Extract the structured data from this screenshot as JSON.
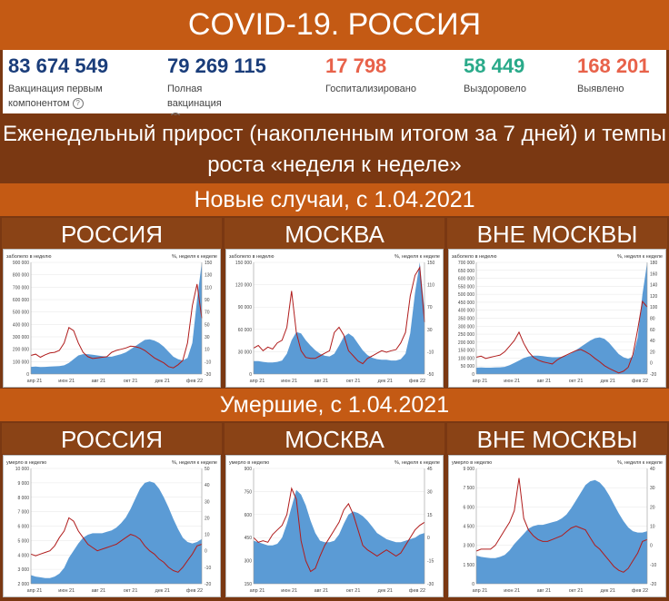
{
  "title": "COVID-19. РОССИЯ",
  "stats": [
    {
      "value": "83 674 549",
      "label": "Вакцинация первым компонентом",
      "color": "#1a3d7a",
      "help": true
    },
    {
      "value": "79 269 115",
      "label": "Полная вакцинация",
      "color": "#1a3d7a",
      "help": true
    },
    {
      "value": "17 798",
      "label": "Госпитализировано",
      "color": "#e8624a",
      "help": false
    },
    {
      "value": "58 449",
      "label": "Выздоровело",
      "color": "#2aaa8a",
      "help": false
    },
    {
      "value": "168 201",
      "label": "Выявлено",
      "color": "#e8624a",
      "help": false
    }
  ],
  "weekly_heading": "Еженедельный прирост (накопленным итогом за 7 дней) и темпы роста «неделя к неделе»",
  "cases_heading": "Новые случаи, с 1.04.2021",
  "deaths_heading": "Умершие, с 1.04.2021",
  "regions": [
    "РОССИЯ",
    "МОСКВА",
    "ВНЕ МОСКВЫ"
  ],
  "colors": {
    "area": "#5b9bd5",
    "line": "#b01c1c",
    "accent": "#c45a14",
    "dark": "#7a3812"
  },
  "chart_data": [
    {
      "type": "area",
      "region": "РОССИЯ",
      "left_label": "заболело в неделю",
      "right_label": "%, неделя к неделе",
      "x_ticks": [
        "апр 21",
        "июн 21",
        "авг 21",
        "окт 21",
        "дек 21",
        "фев 22"
      ],
      "ylim": [
        0,
        900000
      ],
      "y_ticks": [
        "0",
        "100 000",
        "200 000",
        "300 000",
        "400 000",
        "500 000",
        "600 000",
        "700 000",
        "800 000",
        "900 000"
      ],
      "y2lim": [
        -30,
        150
      ],
      "y2_ticks": [
        "-30",
        "-10",
        "10",
        "30",
        "50",
        "70",
        "90",
        "110",
        "130",
        "150"
      ],
      "series": [
        {
          "name": "заболело в неделю",
          "axis": "left",
          "values": [
            58000,
            60000,
            57000,
            58000,
            60000,
            62000,
            64000,
            70000,
            90000,
            120000,
            150000,
            160000,
            160000,
            155000,
            150000,
            145000,
            140000,
            140000,
            150000,
            160000,
            175000,
            200000,
            225000,
            250000,
            275000,
            280000,
            270000,
            250000,
            220000,
            180000,
            140000,
            120000,
            110000,
            130000,
            250000,
            600000,
            900000
          ]
        },
        {
          "name": "%, неделя к неделе",
          "axis": "right",
          "values": [
            0,
            2,
            -3,
            1,
            4,
            5,
            8,
            20,
            45,
            40,
            20,
            5,
            -2,
            -5,
            -4,
            -3,
            -2,
            5,
            8,
            10,
            12,
            15,
            14,
            12,
            8,
            2,
            -4,
            -8,
            -12,
            -18,
            -20,
            -15,
            -8,
            20,
            80,
            115,
            60
          ]
        }
      ]
    },
    {
      "type": "area",
      "region": "МОСКВА",
      "left_label": "заболело в неделю",
      "right_label": "%, неделя к неделе",
      "x_ticks": [
        "апр 21",
        "июн 21",
        "авг 21",
        "окт 21",
        "дек 21",
        "фев 22"
      ],
      "ylim": [
        0,
        165000
      ],
      "y_ticks": [
        "0",
        "30 000",
        "60 000",
        "90 000",
        "120 000",
        "150 000"
      ],
      "y2lim": [
        -50,
        165
      ],
      "y2_ticks": [
        "-50",
        "-10",
        "30",
        "70",
        "110",
        "150"
      ],
      "series": [
        {
          "name": "заболело в неделю",
          "axis": "left",
          "values": [
            19000,
            19000,
            18000,
            17000,
            17000,
            18000,
            20000,
            30000,
            50000,
            62000,
            60000,
            50000,
            42000,
            35000,
            30000,
            27000,
            26000,
            30000,
            42000,
            55000,
            60000,
            55000,
            45000,
            35000,
            28000,
            24000,
            22000,
            21000,
            21000,
            20000,
            20000,
            22000,
            30000,
            60000,
            120000,
            165000,
            95000
          ]
        },
        {
          "name": "%, неделя к неделе",
          "axis": "right",
          "values": [
            0,
            5,
            -5,
            2,
            -2,
            10,
            15,
            40,
            110,
            30,
            -5,
            -18,
            -20,
            -20,
            -15,
            -10,
            -5,
            30,
            40,
            25,
            -5,
            -15,
            -25,
            -30,
            -20,
            -15,
            -10,
            -5,
            -8,
            -5,
            -3,
            10,
            30,
            100,
            140,
            155,
            50
          ]
        }
      ]
    },
    {
      "type": "area",
      "region": "ВНЕ МОСКВЫ",
      "left_label": "заболело в неделю",
      "right_label": "%, неделя к неделе",
      "x_ticks": [
        "апр 21",
        "июн 21",
        "авг 21",
        "окт 21",
        "дек 21",
        "фев 22"
      ],
      "ylim": [
        0,
        700000
      ],
      "y_ticks": [
        "0",
        "50 000",
        "100 000",
        "150 000",
        "200 000",
        "250 000",
        "300 000",
        "350 000",
        "400 000",
        "450 000",
        "500 000",
        "550 000",
        "600 000",
        "650 000",
        "700 000"
      ],
      "y2lim": [
        -20,
        180
      ],
      "y2_ticks": [
        "-20",
        "0",
        "20",
        "40",
        "60",
        "80",
        "100",
        "120",
        "140",
        "160",
        "180"
      ],
      "series": [
        {
          "name": "заболело в неделю",
          "axis": "left",
          "values": [
            40000,
            41000,
            40000,
            40000,
            41000,
            42000,
            45000,
            55000,
            70000,
            85000,
            100000,
            110000,
            115000,
            115000,
            112000,
            108000,
            105000,
            105000,
            108000,
            115000,
            130000,
            150000,
            170000,
            190000,
            210000,
            225000,
            230000,
            220000,
            195000,
            160000,
            125000,
            105000,
            95000,
            110000,
            230000,
            500000,
            700000
          ]
        },
        {
          "name": "%, неделя к неделе",
          "axis": "right",
          "values": [
            10,
            12,
            8,
            10,
            12,
            14,
            20,
            30,
            40,
            55,
            35,
            20,
            10,
            5,
            2,
            0,
            -2,
            5,
            10,
            14,
            18,
            22,
            24,
            20,
            15,
            8,
            2,
            -5,
            -10,
            -14,
            -18,
            -15,
            -8,
            15,
            60,
            110,
            100
          ]
        }
      ]
    },
    {
      "type": "area",
      "region": "РОССИЯ",
      "left_label": "умерло в неделю",
      "right_label": "%, неделя к неделе",
      "x_ticks": [
        "апр 21",
        "июн 21",
        "авг 21",
        "окт 21",
        "дек 21",
        "фев 22"
      ],
      "ylim": [
        2000,
        10000
      ],
      "y_ticks": [
        "2 000",
        "3 000",
        "4 000",
        "5 000",
        "6 000",
        "7 000",
        "8 000",
        "9 000",
        "10 000"
      ],
      "y2lim": [
        -20,
        50
      ],
      "y2_ticks": [
        "-20",
        "-10",
        "0",
        "10",
        "20",
        "30",
        "40",
        "50"
      ],
      "series": [
        {
          "name": "умерло в неделю",
          "axis": "left",
          "values": [
            2600,
            2500,
            2450,
            2400,
            2400,
            2500,
            2700,
            3100,
            3800,
            4300,
            4800,
            5200,
            5400,
            5500,
            5500,
            5500,
            5600,
            5700,
            5900,
            6200,
            6600,
            7200,
            7900,
            8600,
            9000,
            9100,
            9000,
            8600,
            8000,
            7300,
            6500,
            5800,
            5200,
            4900,
            4800,
            4900,
            5100
          ]
        },
        {
          "name": "%, неделя к неделе",
          "axis": "right",
          "values": [
            -2,
            -3,
            -2,
            -1,
            0,
            3,
            8,
            12,
            20,
            18,
            12,
            8,
            4,
            2,
            0,
            1,
            2,
            3,
            4,
            6,
            8,
            10,
            9,
            7,
            3,
            0,
            -2,
            -5,
            -7,
            -10,
            -12,
            -13,
            -10,
            -6,
            -2,
            3,
            4
          ]
        }
      ]
    },
    {
      "type": "area",
      "region": "МОСКВА",
      "left_label": "умерло в неделю",
      "right_label": "%, неделя к неделе",
      "x_ticks": [
        "апр 21",
        "июн 21",
        "авг 21",
        "окт 21",
        "дек 21",
        "фев 22"
      ],
      "ylim": [
        150,
        900
      ],
      "y_ticks": [
        "150",
        "300",
        "450",
        "600",
        "750",
        "900"
      ],
      "y2lim": [
        -30,
        45
      ],
      "y2_ticks": [
        "-30",
        "-15",
        "0",
        "15",
        "30",
        "45"
      ],
      "series": [
        {
          "name": "умерло в неделю",
          "axis": "left",
          "values": [
            430,
            420,
            410,
            400,
            400,
            410,
            450,
            540,
            650,
            760,
            730,
            660,
            560,
            480,
            430,
            420,
            420,
            430,
            470,
            540,
            600,
            620,
            610,
            590,
            560,
            520,
            480,
            460,
            440,
            430,
            420,
            420,
            430,
            440,
            450,
            470,
            480
          ]
        },
        {
          "name": "%, неделя к неделе",
          "axis": "right",
          "values": [
            0,
            -3,
            -2,
            -3,
            2,
            5,
            8,
            15,
            32,
            25,
            -2,
            -15,
            -22,
            -20,
            -12,
            -5,
            0,
            5,
            10,
            18,
            22,
            15,
            5,
            -5,
            -8,
            -10,
            -12,
            -10,
            -8,
            -10,
            -12,
            -10,
            -5,
            0,
            5,
            8,
            10
          ]
        }
      ]
    },
    {
      "type": "area",
      "region": "ВНЕ МОСКВЫ",
      "left_label": "умерло в неделю",
      "right_label": "%, неделя к неделе",
      "x_ticks": [
        "апр 21",
        "июн 21",
        "авг 21",
        "окт 21",
        "дек 21",
        "фев 22"
      ],
      "ylim": [
        0,
        9000
      ],
      "y_ticks": [
        "0",
        "1 500",
        "3 000",
        "4 500",
        "6 000",
        "7 500",
        "9 000"
      ],
      "y2lim": [
        -20,
        40
      ],
      "y2_ticks": [
        "-20",
        "-10",
        "0",
        "10",
        "20",
        "30",
        "40"
      ],
      "series": [
        {
          "name": "умерло в неделю",
          "axis": "left",
          "values": [
            2200,
            2100,
            2050,
            2000,
            2000,
            2100,
            2250,
            2600,
            3100,
            3500,
            3900,
            4300,
            4500,
            4600,
            4600,
            4700,
            4800,
            4900,
            5100,
            5400,
            5900,
            6500,
            7100,
            7700,
            8000,
            8100,
            7900,
            7500,
            6900,
            6200,
            5500,
            4900,
            4400,
            4100,
            4000,
            4000,
            4100
          ]
        },
        {
          "name": "%, неделя к неделе",
          "axis": "right",
          "values": [
            -3,
            -2,
            -2,
            -2,
            0,
            4,
            8,
            12,
            18,
            35,
            14,
            8,
            5,
            3,
            2,
            2,
            3,
            4,
            5,
            7,
            9,
            10,
            9,
            8,
            4,
            0,
            -2,
            -5,
            -8,
            -11,
            -13,
            -14,
            -12,
            -8,
            -4,
            2,
            3
          ]
        }
      ]
    }
  ]
}
